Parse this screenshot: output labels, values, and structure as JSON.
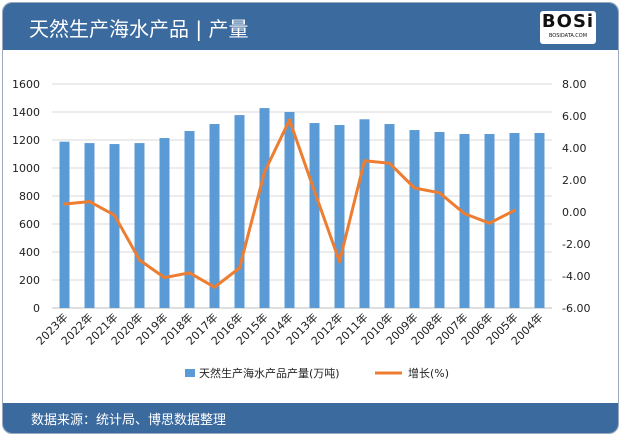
{
  "header": {
    "title": "天然生产海水产品 | 产量",
    "logo_text": "BOSi",
    "logo_sub": "BOSIDATA.COM"
  },
  "footer": {
    "source": "数据来源：统计局、博思数据整理"
  },
  "chart_data": {
    "type": "bar+line",
    "categories": [
      "2023年",
      "2022年",
      "2021年",
      "2020年",
      "2019年",
      "2018年",
      "2017年",
      "2016年",
      "2015年",
      "2014年",
      "2013年",
      "2012年",
      "2011年",
      "2010年",
      "2009年",
      "2008年",
      "2007年",
      "2006年",
      "2005年",
      "2004年"
    ],
    "series": [
      {
        "name": "天然生产海水产品产量(万吨)",
        "type": "bar",
        "axis": "left",
        "color": "#5b9bd5",
        "values": [
          1188,
          1178,
          1171,
          1178,
          1214,
          1264,
          1314,
          1378,
          1428,
          1400,
          1321,
          1307,
          1348,
          1314,
          1271,
          1257,
          1243,
          1243,
          1250,
          1250
        ]
      },
      {
        "name": "增长(%)",
        "type": "line",
        "axis": "right",
        "color": "#ed7d31",
        "values": [
          0.5,
          0.65,
          -0.2,
          -3.0,
          -4.1,
          -3.8,
          -4.7,
          -3.5,
          2.5,
          5.75,
          1.3,
          -3.1,
          3.2,
          3.05,
          1.5,
          1.2,
          -0.1,
          -0.7,
          0.1,
          null
        ]
      }
    ],
    "left_axis": {
      "min": 0,
      "max": 1600,
      "ticks": [
        "0",
        "200",
        "400",
        "600",
        "800",
        "1000",
        "1200",
        "1400",
        "1600"
      ]
    },
    "right_axis": {
      "min": -6,
      "max": 8,
      "ticks": [
        "-6.00",
        "-4.00",
        "-2.00",
        "0.00",
        "2.00",
        "4.00",
        "6.00",
        "8.00"
      ]
    },
    "grid": true,
    "legend": "bottom"
  }
}
